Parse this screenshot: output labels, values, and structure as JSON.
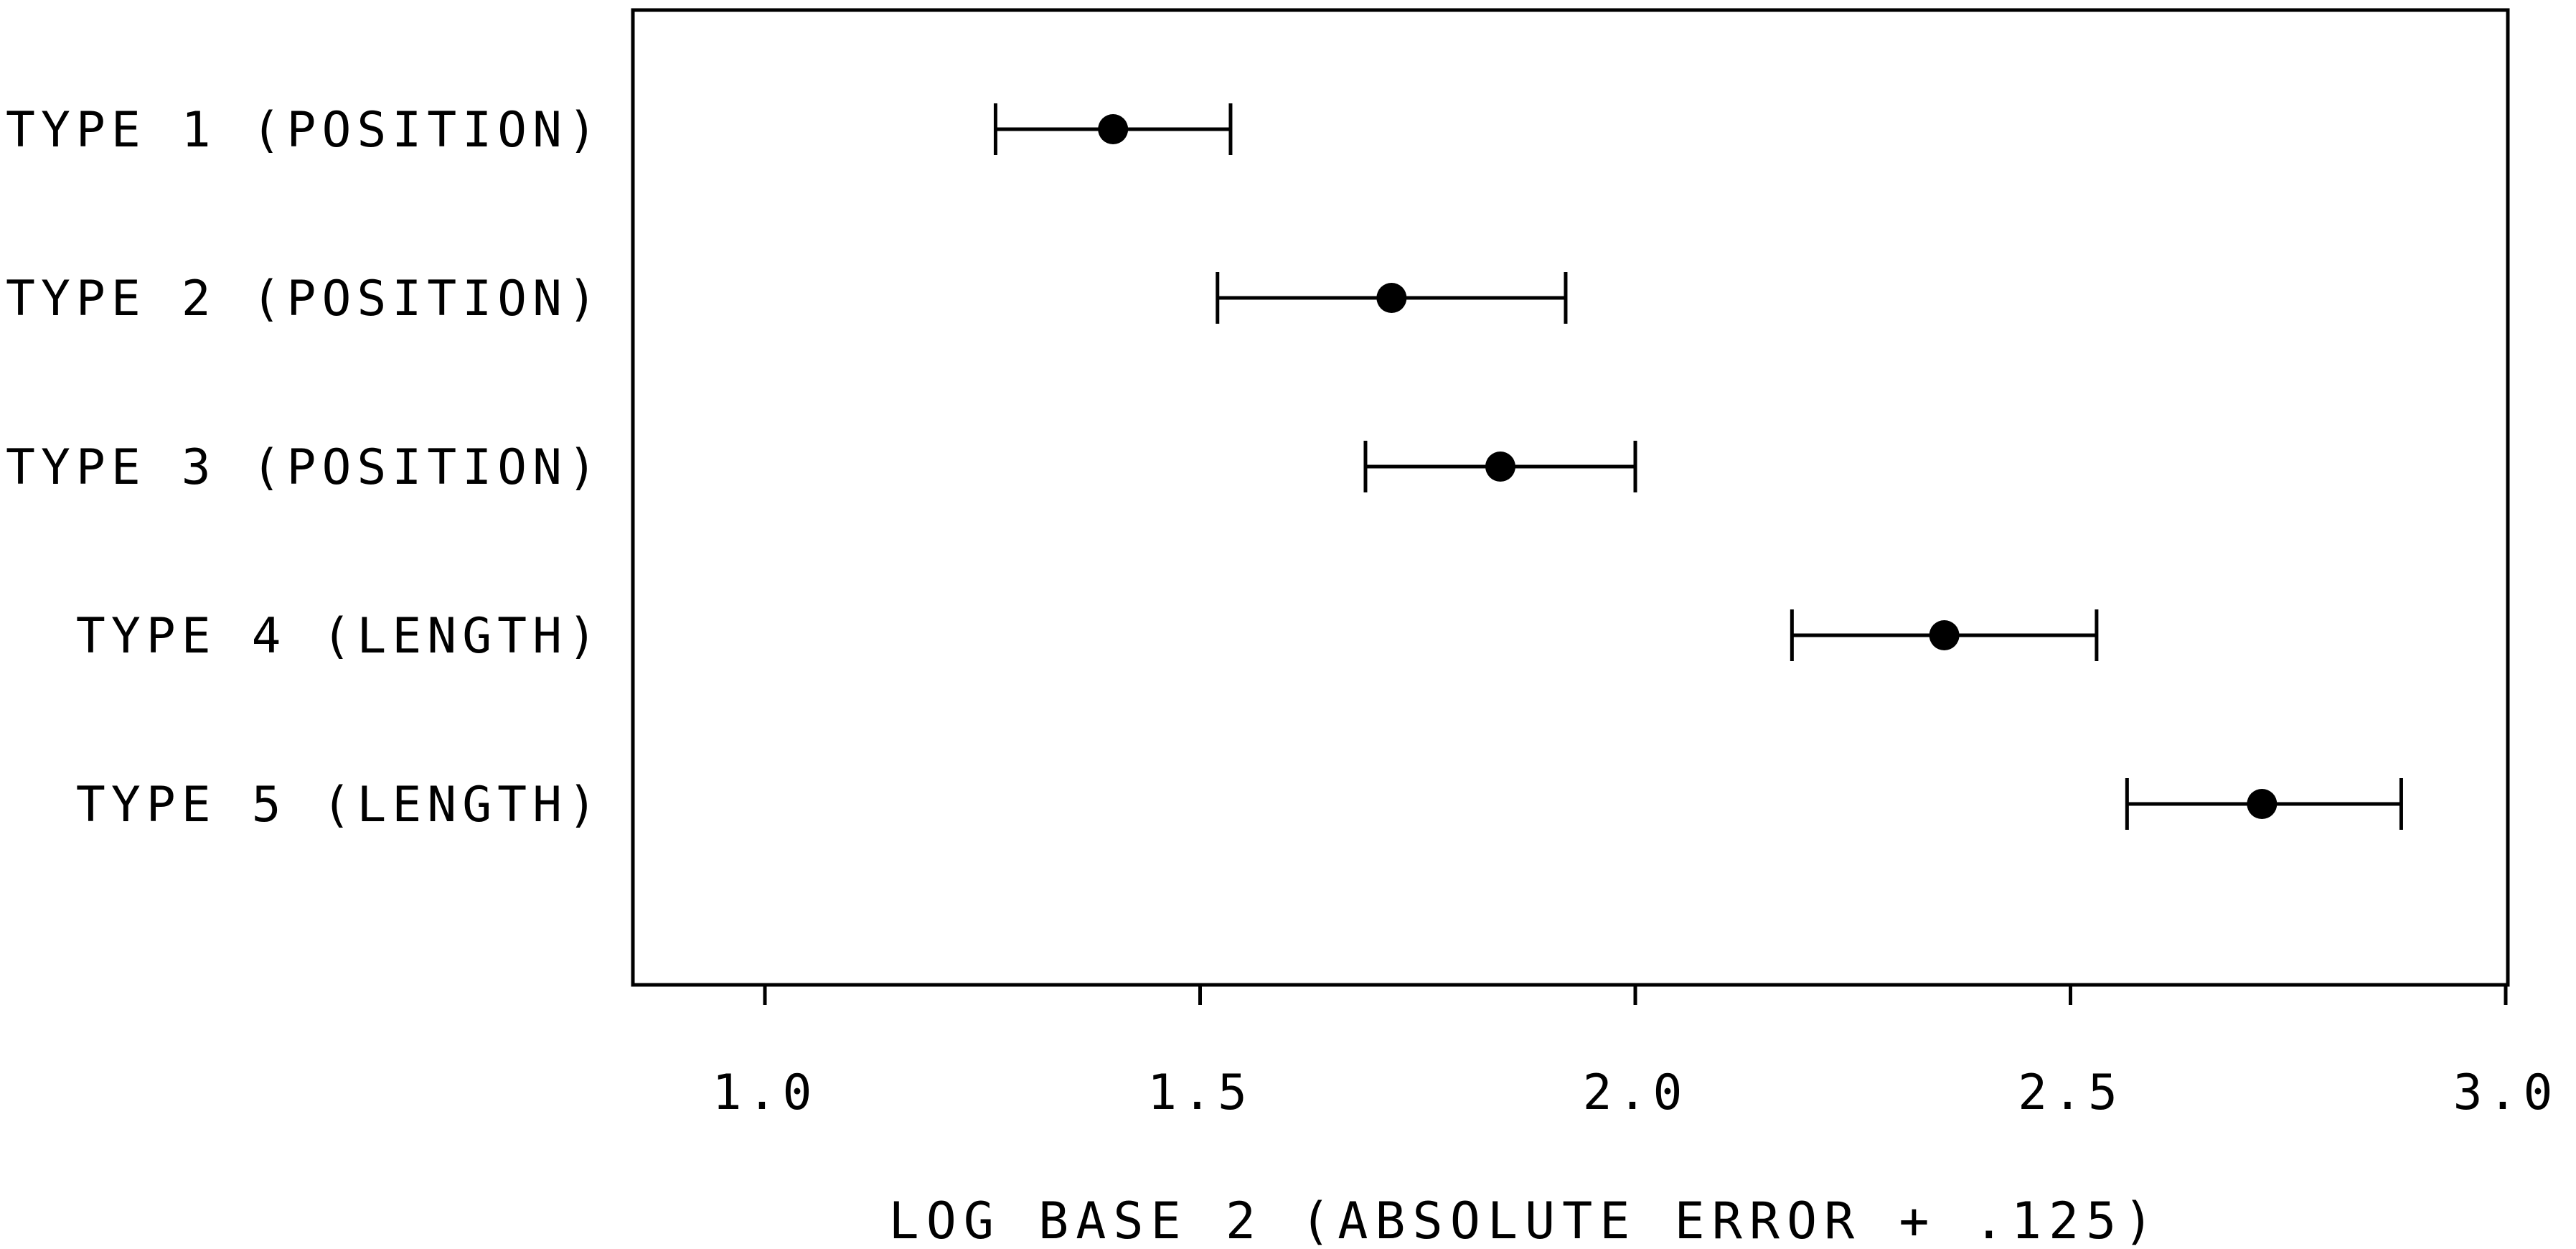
{
  "chart_data": {
    "type": "scatter",
    "xlabel": "LOG BASE 2 (ABSOLUTE ERROR + .125)",
    "xlim": [
      0.85,
      3.0
    ],
    "x_ticks": [
      1.0,
      1.5,
      2.0,
      2.5,
      3.0
    ],
    "x_tick_labels": [
      "1.0",
      "1.5",
      "2.0",
      "2.5",
      "3.0"
    ],
    "grid": false,
    "legend": "none",
    "marker_color": "#000000",
    "categories": [
      "TYPE 1 (POSITION)",
      "TYPE 2 (POSITION)",
      "TYPE 3 (POSITION)",
      "TYPE 4 (LENGTH)",
      "TYPE 5 (LENGTH)"
    ],
    "points": [
      {
        "category": "TYPE 1 (POSITION)",
        "mean": 1.4,
        "low": 1.265,
        "high": 1.535
      },
      {
        "category": "TYPE 2 (POSITION)",
        "mean": 1.72,
        "low": 1.52,
        "high": 1.92
      },
      {
        "category": "TYPE 3 (POSITION)",
        "mean": 1.845,
        "low": 1.69,
        "high": 2.0
      },
      {
        "category": "TYPE 4 (LENGTH)",
        "mean": 2.355,
        "low": 2.18,
        "high": 2.53
      },
      {
        "category": "TYPE 5 (LENGTH)",
        "mean": 2.72,
        "low": 2.565,
        "high": 2.88
      }
    ]
  }
}
